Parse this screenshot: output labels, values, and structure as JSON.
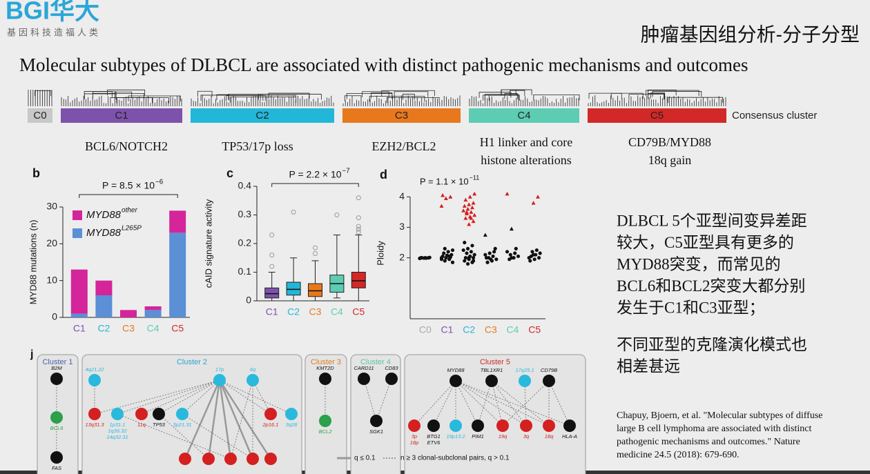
{
  "header": {
    "logo": "BGI华大",
    "slogan": "基因科技造福人类",
    "topic": "肿瘤基因组分析-分子分型",
    "title": "Molecular subtypes of DLBCL are associated with distinct pathogenic mechanisms and outcomes"
  },
  "clusters": {
    "labels": [
      "C0",
      "C1",
      "C2",
      "C3",
      "C4",
      "C5"
    ],
    "colors": [
      "#c8c8c8",
      "#7d52ab",
      "#22b7d8",
      "#e8781c",
      "#5ccdb2",
      "#d22828"
    ],
    "axis_label": "Consensus cluster"
  },
  "subtypes": [
    {
      "lines": [
        "BCL6/NOTCH2"
      ]
    },
    {
      "lines": [
        "TP53/17p loss"
      ]
    },
    {
      "lines": [
        "EZH2/BCL2"
      ]
    },
    {
      "lines": [
        "H1 linker and core",
        "histone alterations"
      ]
    },
    {
      "lines": [
        "CD79B/MYD88",
        "18q gain"
      ]
    }
  ],
  "chart_data": [
    {
      "type": "bar",
      "stacked": true,
      "panel": "b",
      "categories": [
        "C1",
        "C2",
        "C3",
        "C4",
        "C5"
      ],
      "category_colors": [
        "#7d52ab",
        "#22b7d8",
        "#e8781c",
        "#5ccdb2",
        "#d22828"
      ],
      "series": [
        {
          "name": "MYD88",
          "name_sup": "L265P",
          "color": "#5b8fd6",
          "values": [
            1,
            6,
            0,
            2,
            23
          ]
        },
        {
          "name": "MYD88",
          "name_sup": "other",
          "color": "#d4259a",
          "values": [
            12,
            4,
            2,
            1,
            6
          ]
        }
      ],
      "ylabel": "MYD88 mutations (n)",
      "ylim": [
        0,
        30
      ],
      "yticks": [
        0,
        10,
        20,
        30
      ],
      "annotation": "P = 8.5 × 10",
      "annotation_sup": "−6"
    },
    {
      "type": "box",
      "panel": "c",
      "categories": [
        "C1",
        "C2",
        "C3",
        "C4",
        "C5"
      ],
      "category_colors": [
        "#7d52ab",
        "#22b7d8",
        "#e8781c",
        "#5ccdb2",
        "#d22828"
      ],
      "boxes": [
        {
          "whislo": 0,
          "q1": 0.01,
          "med": 0.025,
          "q3": 0.045,
          "whishi": 0.1,
          "fliers": [
            0.12,
            0.16,
            0.23
          ]
        },
        {
          "whislo": 0,
          "q1": 0.02,
          "med": 0.04,
          "q3": 0.065,
          "whishi": 0.15,
          "fliers": [
            0.31
          ]
        },
        {
          "whislo": 0,
          "q1": 0.015,
          "med": 0.035,
          "q3": 0.06,
          "whishi": 0.14,
          "fliers": [
            0.165,
            0.185
          ]
        },
        {
          "whislo": 0.01,
          "q1": 0.03,
          "med": 0.06,
          "q3": 0.09,
          "whishi": 0.23,
          "fliers": [
            0.3
          ]
        },
        {
          "whislo": 0,
          "q1": 0.045,
          "med": 0.07,
          "q3": 0.1,
          "whishi": 0.23,
          "fliers": [
            0.24,
            0.25,
            0.26,
            0.29,
            0.36
          ]
        }
      ],
      "ylabel": "cAID signature activity",
      "ylim": [
        0,
        0.4
      ],
      "yticks": [
        0,
        0.1,
        0.2,
        0.3,
        0.4
      ],
      "annotation": "P = 2.2 × 10",
      "annotation_sup": "−7"
    },
    {
      "type": "strip",
      "panel": "d",
      "categories": [
        "C0",
        "C1",
        "C2",
        "C3",
        "C4",
        "C5"
      ],
      "category_colors": [
        "#aaaaaa",
        "#7d52ab",
        "#22b7d8",
        "#e8781c",
        "#5ccdb2",
        "#d22828"
      ],
      "ylabel": "Ploidy",
      "ylim": [
        0,
        4.3
      ],
      "yticks": [
        2,
        3,
        4
      ],
      "annotation": "P = 1.1 × 10",
      "annotation_sup": "−11",
      "series": [
        {
          "marker": "circle",
          "color": "#111111",
          "x": [
            "C0",
            "C0",
            "C0",
            "C0",
            "C0",
            "C0",
            "C0",
            "C0",
            "C1",
            "C1",
            "C1",
            "C1",
            "C1",
            "C1",
            "C1",
            "C1",
            "C1",
            "C1",
            "C1",
            "C1",
            "C1",
            "C1",
            "C1",
            "C2",
            "C2",
            "C2",
            "C2",
            "C2",
            "C2",
            "C2",
            "C2",
            "C2",
            "C2",
            "C2",
            "C2",
            "C2",
            "C2",
            "C2",
            "C2",
            "C3",
            "C3",
            "C3",
            "C3",
            "C3",
            "C3",
            "C3",
            "C3",
            "C3",
            "C3",
            "C3",
            "C4",
            "C4",
            "C4",
            "C4",
            "C4",
            "C4",
            "C4",
            "C4",
            "C5",
            "C5",
            "C5",
            "C5",
            "C5",
            "C5",
            "C5",
            "C5",
            "C5",
            "C5"
          ],
          "y": [
            1.98,
            1.99,
            2,
            2,
            2,
            2.01,
            2,
            1.99,
            1.85,
            1.9,
            1.95,
            2,
            2,
            2.02,
            2.05,
            2.08,
            2.1,
            2.15,
            2.2,
            2.25,
            2.3,
            2.05,
            1.95,
            1.8,
            1.85,
            1.9,
            1.95,
            2,
            2,
            2.05,
            2.1,
            2.15,
            2.2,
            2.25,
            2.3,
            2.4,
            2.5,
            2,
            1.9,
            1.85,
            1.9,
            1.95,
            2,
            2.05,
            2.1,
            2.15,
            2.2,
            2,
            1.95,
            2.3,
            1.95,
            2,
            2.05,
            2.1,
            2.15,
            2.2,
            2,
            2.3,
            1.9,
            1.95,
            2,
            2.05,
            2.1,
            2.15,
            2.2,
            2.25,
            2,
            2.1
          ]
        },
        {
          "marker": "triangle",
          "color": "#111111",
          "x": [
            "C3",
            "C4"
          ],
          "y": [
            2.75,
            2.95
          ]
        },
        {
          "marker": "triangle",
          "color": "#d42020",
          "x": [
            "C1",
            "C1",
            "C1",
            "C1",
            "C2",
            "C2",
            "C2",
            "C2",
            "C2",
            "C2",
            "C2",
            "C2",
            "C2",
            "C2",
            "C2",
            "C2",
            "C2",
            "C2",
            "C2",
            "C2",
            "C2",
            "C2",
            "C4",
            "C5",
            "C5"
          ],
          "y": [
            3.7,
            3.95,
            4,
            4.05,
            3.1,
            3.2,
            3.3,
            3.35,
            3.4,
            3.45,
            3.5,
            3.55,
            3.6,
            3.65,
            3.7,
            3.75,
            3.8,
            3.9,
            4,
            4.1,
            3.5,
            3.3,
            4.1,
            3.8,
            4
          ]
        }
      ]
    }
  ],
  "network": {
    "panel": "j",
    "groups": [
      {
        "title": "Cluster 1",
        "color": "#4b5fae",
        "nodes": [
          {
            "label": [
              "B2M"
            ],
            "color": "#111111"
          },
          {
            "label": [
              "BCL6"
            ],
            "color": "#2ca04a"
          },
          {
            "label": [
              "FAS"
            ],
            "color": "#111111"
          }
        ]
      },
      {
        "title": "Cluster 2",
        "color": "#2aa6d0",
        "nodes": [
          {
            "label": [
              "4q21.22"
            ],
            "color": "#29b9dc"
          },
          {
            "label": [
              "17p"
            ],
            "color": "#29b9dc"
          },
          {
            "label": [
              "6q"
            ],
            "color": "#29b9dc"
          },
          {
            "label": [
              "13q31.3"
            ],
            "color": "#d42020"
          },
          {
            "label": [
              "1p31.1",
              "1q36.32",
              "14q32.31"
            ],
            "color": "#29b9dc"
          },
          {
            "label": [
              "11q"
            ],
            "color": "#d42020"
          },
          {
            "label": [
              "TP53"
            ],
            "color": "#111111"
          },
          {
            "label": [
              "3p21.31"
            ],
            "color": "#29b9dc"
          },
          {
            "label": [
              "2p16.1"
            ],
            "color": "#d42020"
          },
          {
            "label": [
              "3q28"
            ],
            "color": "#29b9dc"
          }
        ]
      },
      {
        "title": "Cluster 3",
        "color": "#e07b1a",
        "nodes": [
          {
            "label": [
              "KMT2D"
            ],
            "color": "#111111"
          },
          {
            "label": [
              "BCL2"
            ],
            "color": "#2ca04a"
          }
        ]
      },
      {
        "title": "Cluster 4",
        "color": "#5cc4a8",
        "nodes": [
          {
            "label": [
              "CARD11"
            ],
            "color": "#111111"
          },
          {
            "label": [
              "CD83"
            ],
            "color": "#111111"
          },
          {
            "label": [
              "SGK1"
            ],
            "color": "#111111"
          }
        ]
      },
      {
        "title": "Cluster 5",
        "color": "#cc2a2a",
        "nodes": [
          {
            "label": [
              "MYD88"
            ],
            "color": "#111111"
          },
          {
            "label": [
              "TBL1XR1"
            ],
            "color": "#111111"
          },
          {
            "label": [
              "17q25.1"
            ],
            "color": "#29b9dc"
          },
          {
            "label": [
              "CD79B"
            ],
            "color": "#111111"
          },
          {
            "label": [
              "3p",
              "18p"
            ],
            "color": "#d42020"
          },
          {
            "label": [
              "BTG1",
              "ETV6"
            ],
            "color": "#111111"
          },
          {
            "label": [
              "19p13.2"
            ],
            "color": "#29b9dc"
          },
          {
            "label": [
              "PIM1"
            ],
            "color": "#111111"
          },
          {
            "label": [
              "19q"
            ],
            "color": "#d42020"
          },
          {
            "label": [
              "3q"
            ],
            "color": "#d42020"
          },
          {
            "label": [
              "18q"
            ],
            "color": "#d42020"
          },
          {
            "label": [
              "HLA-A"
            ],
            "color": "#111111"
          }
        ]
      }
    ],
    "legend": [
      "q ≤ 0.1",
      "n ≥ 3 clonal-subclonal pairs, q > 0.1"
    ]
  },
  "notes": {
    "paragraphs": [
      [
        "DLBCL 5个亚型间变异差距",
        "较大，C5亚型具有更多的",
        "MYD88突变，而常见的",
        "BCL6和BCL2突变大都分别",
        "发生于C1和C3亚型；"
      ],
      [
        "不同亚型的克隆演化模式也",
        "相差甚远"
      ]
    ],
    "citation": [
      "Chapuy, Bjoern, et al. \"Molecular subtypes of diffuse",
      "large B cell lymphoma are associated with distinct",
      "pathogenic mechanisms and outcomes.\" Nature",
      "medicine 24.5 (2018): 679-690."
    ]
  }
}
